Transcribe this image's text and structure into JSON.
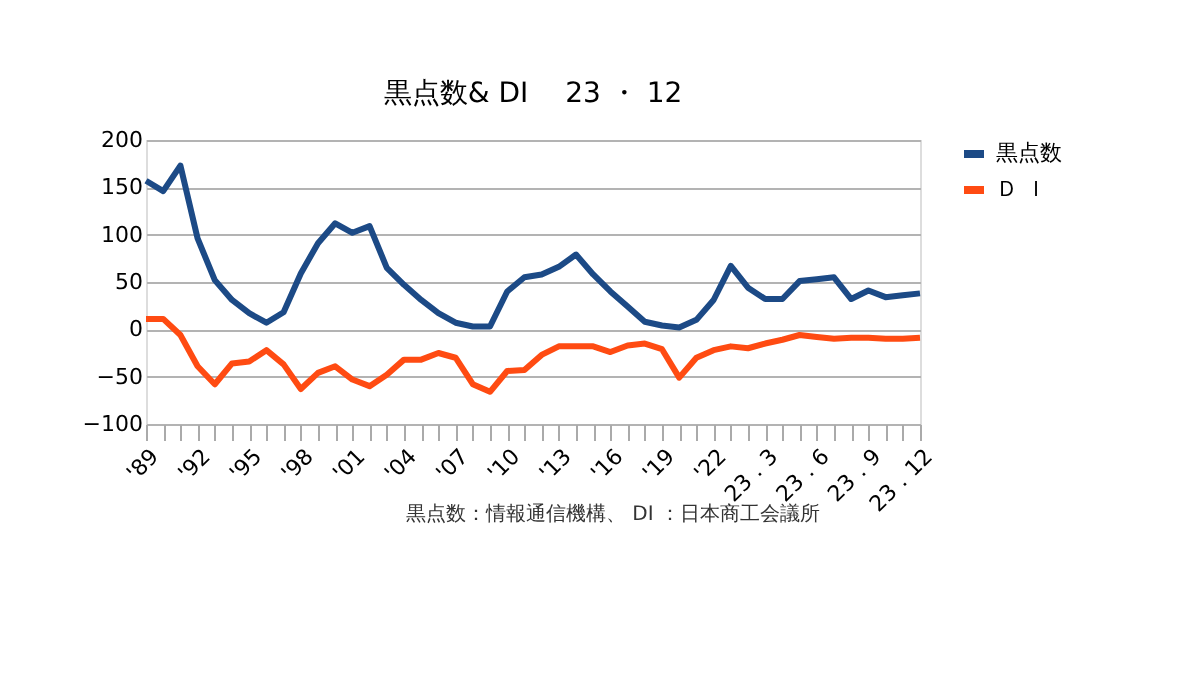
{
  "chart_data": {
    "type": "line",
    "title": "黒点数& DI　 23 ・ 12",
    "categories": [
      "'89",
      null,
      null,
      "'92",
      null,
      null,
      "'95",
      null,
      null,
      "'98",
      null,
      null,
      "'01",
      null,
      null,
      "'04",
      null,
      null,
      "'07",
      null,
      null,
      "'10",
      null,
      null,
      "'13",
      null,
      null,
      "'16",
      null,
      null,
      "'19",
      null,
      null,
      "'22",
      null,
      null,
      "23．3",
      null,
      null,
      "23．6",
      null,
      null,
      "23．9",
      null,
      null,
      "23．12"
    ],
    "series": [
      {
        "name": "黒点数",
        "color": "#1c4a86",
        "values": [
          157,
          146,
          173,
          96,
          52,
          31,
          17,
          7,
          18,
          59,
          91,
          112,
          102,
          109,
          65,
          47,
          31,
          17,
          7,
          3,
          3,
          40,
          55,
          58,
          66,
          79,
          58,
          40,
          24,
          8,
          4,
          2,
          10,
          31,
          67,
          44,
          32,
          32,
          51,
          53,
          55,
          32,
          41,
          34,
          36,
          38
        ]
      },
      {
        "name": "Ｄ Ｉ",
        "color": "#ff4b12",
        "values": [
          11,
          11,
          -6,
          -39,
          -58,
          -36,
          -34,
          -22,
          -37,
          -63,
          -46,
          -39,
          -53,
          -60,
          -48,
          -32,
          -32,
          -25,
          -30,
          -58,
          -66,
          -44,
          -43,
          -27,
          -18,
          -18,
          -18,
          -24,
          -17,
          -15,
          -21,
          -51,
          -30,
          -22,
          -18,
          -20,
          -15,
          -11,
          -6,
          -8,
          -10,
          -9,
          -9,
          -10,
          -10,
          -9
        ]
      }
    ],
    "ylim": [
      -100,
      200
    ],
    "yticks": [
      -100,
      -50,
      0,
      50,
      100,
      150,
      200
    ],
    "grid": "y",
    "legend": "right",
    "marker": "none",
    "line_style": "solid",
    "annotations": [
      "黒点数：情報通信機構、 DI ：日本商工会議所"
    ]
  }
}
